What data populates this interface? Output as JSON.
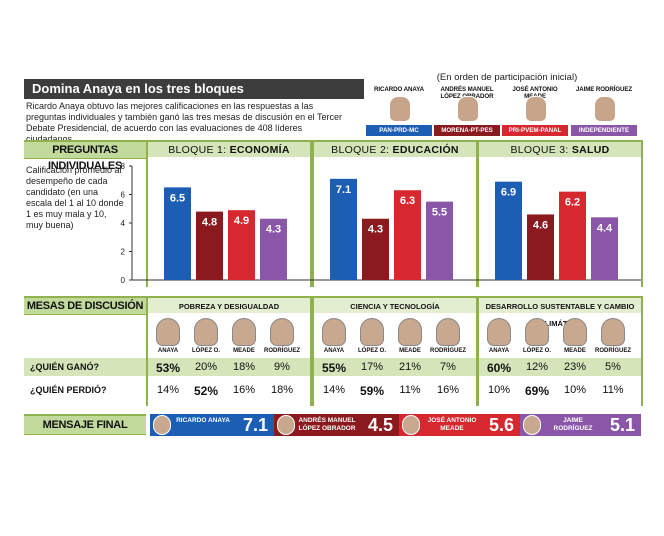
{
  "header": {
    "title": "Domina Anaya en los tres bloques",
    "intro": "Ricardo Anaya obtuvo las mejores calificaciones en las respuestas a las preguntas individuales y también ganó las tres mesas de discusión en el Tercer Debate Presidencial, de acuerdo con las evaluaciones de 408 líderes ciudadanos.",
    "order_note": "(En orden de participación inicial)"
  },
  "candidates": [
    {
      "name": "RICARDO ANAYA",
      "party": "PAN-PRD-MC",
      "color": "#1d5eb5"
    },
    {
      "name": "ANDRÉS MANUEL LÓPEZ OBRADOR",
      "party": "MORENA-PT-PES",
      "color": "#8b1a1f"
    },
    {
      "name": "JOSÉ ANTONIO MEADE",
      "party": "PRI-PVEM-PANAL",
      "color": "#d7282f"
    },
    {
      "name": "JAIME RODRÍGUEZ",
      "party": "INDEPENDIENTE",
      "color": "#8a56a8"
    }
  ],
  "preguntas": {
    "label": "PREGUNTAS INDIVIDUALES",
    "ylabel": "Calificación promedio al desempeño de cada candidato (en una escala del 1 al 10 donde 1 es muy mala y 10, muy buena)",
    "blocks": [
      {
        "prefix": "BLOQUE 1:",
        "topic": "ECONOMÍA"
      },
      {
        "prefix": "BLOQUE 2:",
        "topic": "EDUCACIÓN"
      },
      {
        "prefix": "BLOQUE 3:",
        "topic": "SALUD"
      }
    ]
  },
  "chart_data": {
    "type": "bar",
    "categories": [
      "BLOQUE 1: ECONOMÍA",
      "BLOQUE 2: EDUCACIÓN",
      "BLOQUE 3: SALUD"
    ],
    "series": [
      {
        "name": "RICARDO ANAYA",
        "values": [
          6.5,
          7.1,
          6.9
        ]
      },
      {
        "name": "ANDRÉS MANUEL LÓPEZ OBRADOR",
        "values": [
          4.8,
          4.3,
          4.6
        ]
      },
      {
        "name": "JOSÉ ANTONIO MEADE",
        "values": [
          4.9,
          6.3,
          6.2
        ]
      },
      {
        "name": "JAIME RODRÍGUEZ",
        "values": [
          4.3,
          5.5,
          4.4
        ]
      }
    ],
    "yticks": [
      0,
      2,
      4,
      6,
      8
    ],
    "ylim": [
      0,
      8
    ],
    "ylabel": "Calificación promedio al desempeño de cada candidato (en una escala del 1 al 10 donde 1 es muy mala y 10, muy buena)",
    "grid": false
  },
  "mesas": {
    "label": "MESAS DE DISCUSIÓN",
    "gano_label": "¿QUIÉN GANÓ?",
    "perdio_label": "¿QUIÉN PERDIÓ?",
    "short_names": [
      "ANAYA",
      "LÓPEZ O.",
      "MEADE",
      "RODRÍGUEZ"
    ],
    "tables": [
      {
        "title": "POBREZA Y DESIGUALDAD",
        "gano": [
          "53%",
          "20%",
          "18%",
          "9%"
        ],
        "perdio": [
          "14%",
          "52%",
          "16%",
          "18%"
        ],
        "gano_bold": 0,
        "perdio_bold": 1
      },
      {
        "title": "CIENCIA Y TECNOLOGÍA",
        "gano": [
          "55%",
          "17%",
          "21%",
          "7%"
        ],
        "perdio": [
          "14%",
          "59%",
          "11%",
          "16%"
        ],
        "gano_bold": 0,
        "perdio_bold": 1
      },
      {
        "title": "DESARROLLO SUSTENTABLE Y CAMBIO CLIMÁTICO",
        "gano": [
          "60%",
          "12%",
          "23%",
          "5%"
        ],
        "perdio": [
          "10%",
          "69%",
          "10%",
          "11%"
        ],
        "gano_bold": 0,
        "perdio_bold": 1
      }
    ]
  },
  "mensaje": {
    "label": "MENSAJE FINAL",
    "items": [
      {
        "name": "RICARDO ANAYA",
        "value": "7.1"
      },
      {
        "name": "ANDRÉS MANUEL LÓPEZ OBRADOR",
        "value": "4.5"
      },
      {
        "name": "JOSÉ ANTONIO MEADE",
        "value": "5.6"
      },
      {
        "name": "JAIME RODRÍGUEZ",
        "value": "5.1"
      }
    ]
  }
}
